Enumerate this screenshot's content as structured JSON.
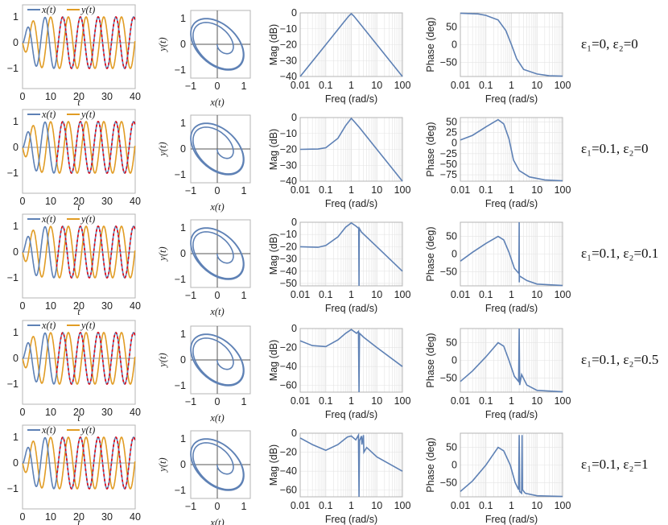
{
  "colors": {
    "x": "#5e81b5",
    "y": "#e19c24",
    "overlay": "#e8000b",
    "frame": "#b4b4b4",
    "grid": "#e4e4e4"
  },
  "chart_data": {
    "type": "line",
    "common": {
      "time": {
        "xlabel": "t",
        "xlim": [
          0,
          40
        ],
        "xticks": [
          0,
          10,
          20,
          30,
          40
        ],
        "ylim": [
          -1.3,
          1.3
        ],
        "yticks": [
          1,
          0,
          -1
        ],
        "legend": [
          "x(t)",
          "y(t)"
        ],
        "legend_position": "top",
        "model": {
          "omega": 1.0,
          "phase_x": -0.14,
          "phase_y": -2.14,
          "envelope_tau": 2.0,
          "overlay_from_t": 12
        }
      },
      "portrait": {
        "xlabel": "x(t)",
        "ylabel": "y(t)",
        "xticks": [
          -1,
          0,
          1
        ],
        "yticks": [
          1,
          0,
          -1
        ]
      },
      "mag": {
        "xlabel": "Freq (rad/s)",
        "ylabel": "Mag (dB)",
        "xticks": [
          "0.01",
          "0.1",
          "1",
          "10",
          "100"
        ]
      },
      "phase": {
        "xlabel": "Freq (rad/s)",
        "ylabel": "Phase (deg)",
        "xticks": [
          "0.01",
          "0.1",
          "1",
          "10",
          "100"
        ]
      }
    },
    "rows": [
      {
        "label": "ε₁=0, ε₂=0",
        "mag": {
          "ylim": [
            -40,
            0
          ],
          "yticks": [
            0,
            -10,
            -20,
            -30,
            -40
          ],
          "points": [
            [
              0.01,
              -40
            ],
            [
              0.1,
              -20
            ],
            [
              0.5,
              -6
            ],
            [
              0.8,
              -2
            ],
            [
              1,
              -0.5
            ],
            [
              1.25,
              -2
            ],
            [
              2,
              -6
            ],
            [
              10,
              -20
            ],
            [
              100,
              -40
            ]
          ]
        },
        "phase": {
          "ylim": [
            -90,
            90
          ],
          "yticks": [
            50,
            0,
            -50
          ],
          "points": [
            [
              0.01,
              89
            ],
            [
              0.05,
              87
            ],
            [
              0.1,
              83
            ],
            [
              0.3,
              70
            ],
            [
              0.6,
              40
            ],
            [
              1,
              0
            ],
            [
              1.6,
              -40
            ],
            [
              3,
              -70
            ],
            [
              10,
              -83
            ],
            [
              30,
              -88
            ],
            [
              100,
              -89
            ]
          ]
        }
      },
      {
        "label": "ε₁=0.1, ε₂=0",
        "mag": {
          "ylim": [
            -40,
            0
          ],
          "yticks": [
            0,
            -10,
            -20,
            -30,
            -40
          ],
          "points": [
            [
              0.01,
              -20
            ],
            [
              0.05,
              -19.8
            ],
            [
              0.1,
              -19
            ],
            [
              0.3,
              -13
            ],
            [
              0.6,
              -5
            ],
            [
              1,
              -0.5
            ],
            [
              1.3,
              -2.5
            ],
            [
              2,
              -6
            ],
            [
              10,
              -20
            ],
            [
              100,
              -40
            ]
          ]
        },
        "phase": {
          "ylim": [
            -90,
            60
          ],
          "yticks": [
            50,
            25,
            0,
            -25,
            -50,
            -75
          ],
          "points": [
            [
              0.01,
              7
            ],
            [
              0.03,
              18
            ],
            [
              0.1,
              38
            ],
            [
              0.3,
              55
            ],
            [
              0.5,
              45
            ],
            [
              0.8,
              10
            ],
            [
              1.2,
              -40
            ],
            [
              2,
              -65
            ],
            [
              5,
              -80
            ],
            [
              20,
              -87
            ],
            [
              100,
              -89
            ]
          ]
        }
      },
      {
        "label": "ε₁=0.1, ε₂=0.1",
        "mag": {
          "ylim": [
            -52,
            0
          ],
          "yticks": [
            0,
            -10,
            -20,
            -30,
            -40,
            -50
          ],
          "points": [
            [
              0.01,
              -20
            ],
            [
              0.05,
              -20.5
            ],
            [
              0.1,
              -19
            ],
            [
              0.3,
              -12
            ],
            [
              0.6,
              -4
            ],
            [
              1,
              -0.5
            ],
            [
              1.5,
              -3
            ],
            [
              1.95,
              -5
            ],
            [
              2,
              -52
            ],
            [
              2.05,
              -5
            ],
            [
              2.5,
              -8
            ],
            [
              10,
              -20
            ],
            [
              100,
              -40
            ]
          ]
        },
        "phase": {
          "ylim": [
            -90,
            90
          ],
          "yticks": [
            50,
            0,
            -50
          ],
          "points": [
            [
              0.01,
              -20
            ],
            [
              0.03,
              5
            ],
            [
              0.1,
              30
            ],
            [
              0.3,
              50
            ],
            [
              0.5,
              40
            ],
            [
              0.8,
              5
            ],
            [
              1.3,
              -40
            ],
            [
              1.95,
              -55
            ],
            [
              2,
              90
            ],
            [
              2.02,
              -80
            ],
            [
              2.05,
              -62
            ],
            [
              4,
              -75
            ],
            [
              10,
              -85
            ],
            [
              100,
              -89
            ]
          ]
        }
      },
      {
        "label": "ε₁=0.1, ε₂=0.5",
        "mag": {
          "ylim": [
            -67,
            0
          ],
          "yticks": [
            0,
            -20,
            -40,
            -60
          ],
          "points": [
            [
              0.01,
              -13
            ],
            [
              0.03,
              -18
            ],
            [
              0.1,
              -19
            ],
            [
              0.3,
              -12
            ],
            [
              0.6,
              -5
            ],
            [
              1,
              -1
            ],
            [
              1.6,
              -5
            ],
            [
              1.9,
              -3
            ],
            [
              2,
              -67
            ],
            [
              2.1,
              -5
            ],
            [
              3,
              -9
            ],
            [
              10,
              -20
            ],
            [
              100,
              -40
            ]
          ]
        },
        "phase": {
          "ylim": [
            -90,
            90
          ],
          "yticks": [
            50,
            0,
            -50
          ],
          "points": [
            [
              0.01,
              -60
            ],
            [
              0.03,
              -30
            ],
            [
              0.1,
              10
            ],
            [
              0.3,
              50
            ],
            [
              0.5,
              40
            ],
            [
              0.8,
              0
            ],
            [
              1.3,
              -45
            ],
            [
              1.9,
              -60
            ],
            [
              2,
              90
            ],
            [
              2.1,
              -70
            ],
            [
              2.5,
              -40
            ],
            [
              4,
              -70
            ],
            [
              10,
              -85
            ],
            [
              100,
              -89
            ]
          ]
        }
      },
      {
        "label": "ε₁=0.1, ε₂=1",
        "mag": {
          "ylim": [
            -67,
            0
          ],
          "yticks": [
            0,
            -20,
            -40,
            -60
          ],
          "points": [
            [
              0.01,
              -5
            ],
            [
              0.03,
              -12
            ],
            [
              0.1,
              -18
            ],
            [
              0.3,
              -12
            ],
            [
              0.7,
              -4
            ],
            [
              1,
              -3
            ],
            [
              1.5,
              -7
            ],
            [
              1.9,
              -2
            ],
            [
              2,
              -67
            ],
            [
              2.1,
              -8
            ],
            [
              2.5,
              -3
            ],
            [
              2.6,
              -12
            ],
            [
              3,
              -2
            ],
            [
              3.1,
              -20
            ],
            [
              4,
              -15
            ],
            [
              10,
              -25
            ],
            [
              100,
              -40
            ]
          ]
        },
        "phase": {
          "ylim": [
            -90,
            90
          ],
          "yticks": [
            50,
            0,
            -50
          ],
          "points": [
            [
              0.01,
              -75
            ],
            [
              0.03,
              -45
            ],
            [
              0.1,
              0
            ],
            [
              0.3,
              50
            ],
            [
              0.5,
              40
            ],
            [
              0.9,
              0
            ],
            [
              1.4,
              -50
            ],
            [
              1.9,
              -70
            ],
            [
              2,
              85
            ],
            [
              2.1,
              -75
            ],
            [
              2.5,
              -80
            ],
            [
              2.6,
              85
            ],
            [
              2.7,
              -70
            ],
            [
              3.5,
              -80
            ],
            [
              10,
              -87
            ],
            [
              100,
              -89
            ]
          ]
        }
      }
    ]
  }
}
